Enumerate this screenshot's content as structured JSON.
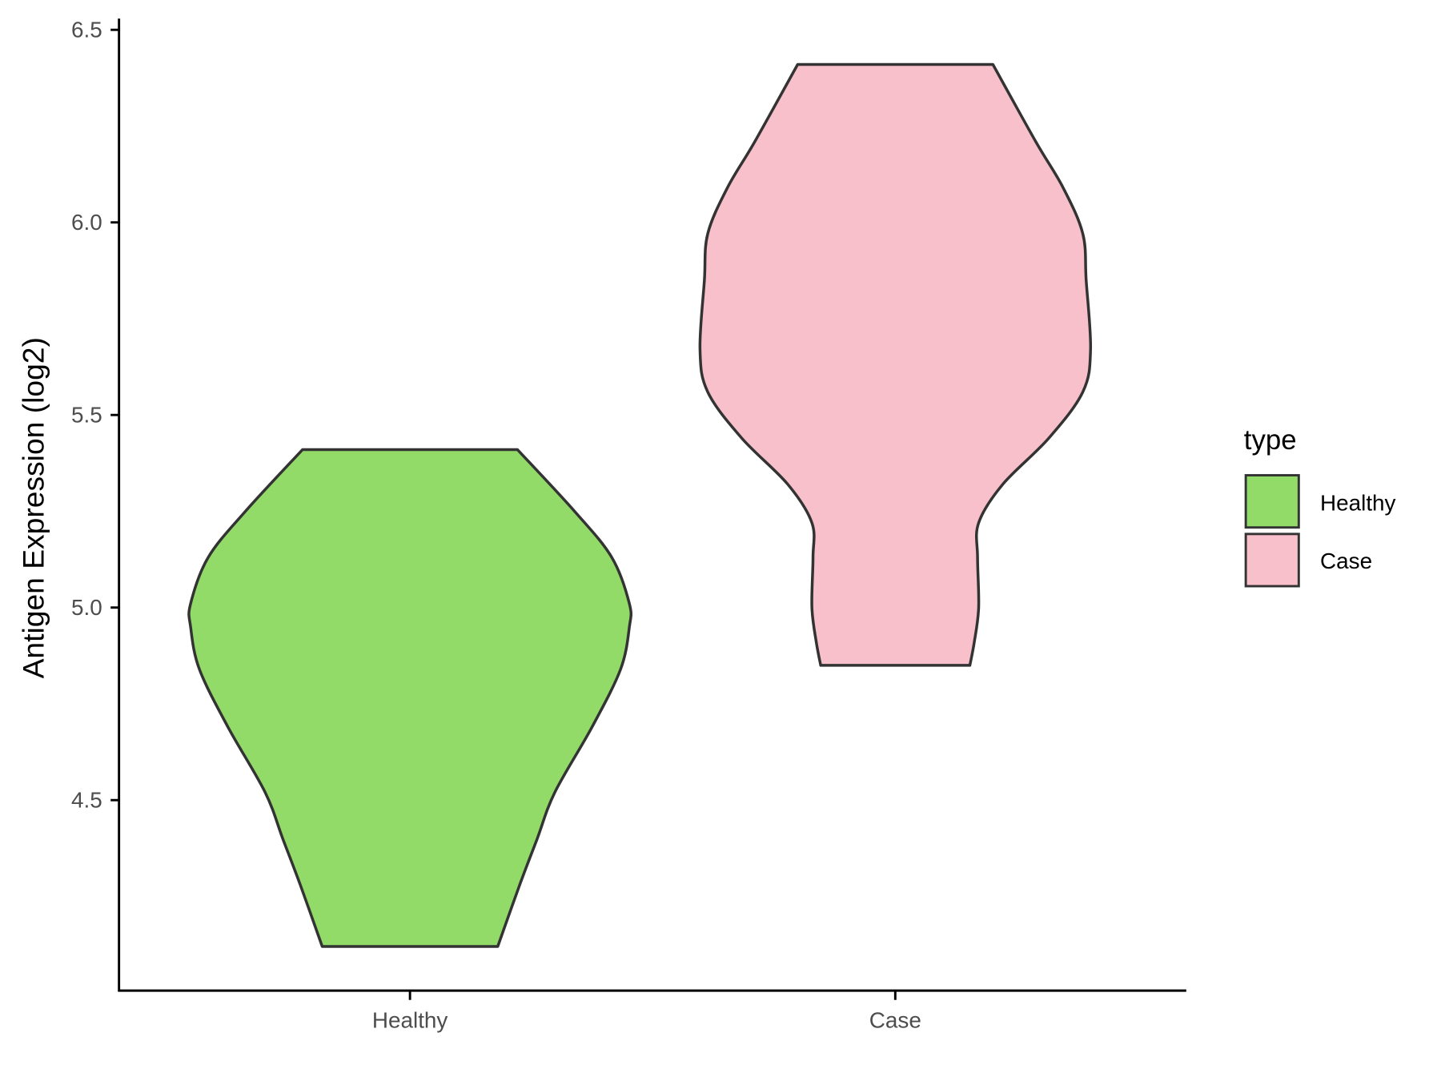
{
  "chart_data": {
    "type": "violin",
    "title": "",
    "xlabel": "",
    "ylabel": "Antigen Expression (log2)",
    "ylim": [
      3.97,
      6.52
    ],
    "yticks": [
      4.5,
      5.0,
      5.5,
      6.0,
      6.5
    ],
    "ytick_labels": [
      "4.5",
      "5.0",
      "5.5",
      "6.0",
      "6.5"
    ],
    "categories": [
      "Healthy",
      "Case"
    ],
    "grid": false,
    "legend": {
      "title": "type",
      "position": "right",
      "entries": [
        {
          "label": "Healthy",
          "color": "#93DB69"
        },
        {
          "label": "Case",
          "color": "#F7C0CB"
        }
      ]
    },
    "series": [
      {
        "name": "Healthy",
        "color": "#93DB69",
        "min": 4.12,
        "max": 5.41,
        "profile_values": [
          5.41,
          5.25,
          5.13,
          5.01,
          4.95,
          4.84,
          4.69,
          4.52,
          4.4,
          4.28,
          4.12
        ],
        "profile_density": [
          0.49,
          0.75,
          0.92,
          1.0,
          1.0,
          0.96,
          0.83,
          0.66,
          0.58,
          0.5,
          0.4
        ]
      },
      {
        "name": "Case",
        "color": "#F7C0CB",
        "min": 4.85,
        "max": 6.41,
        "profile_values": [
          6.41,
          6.21,
          6.09,
          5.97,
          5.85,
          5.67,
          5.56,
          5.44,
          5.32,
          5.22,
          5.13,
          5.0,
          4.91,
          4.85
        ],
        "profile_density": [
          0.445,
          0.64,
          0.765,
          0.855,
          0.87,
          0.89,
          0.855,
          0.7,
          0.49,
          0.38,
          0.375,
          0.38,
          0.36,
          0.34
        ]
      }
    ],
    "outline_color": "#333333"
  }
}
